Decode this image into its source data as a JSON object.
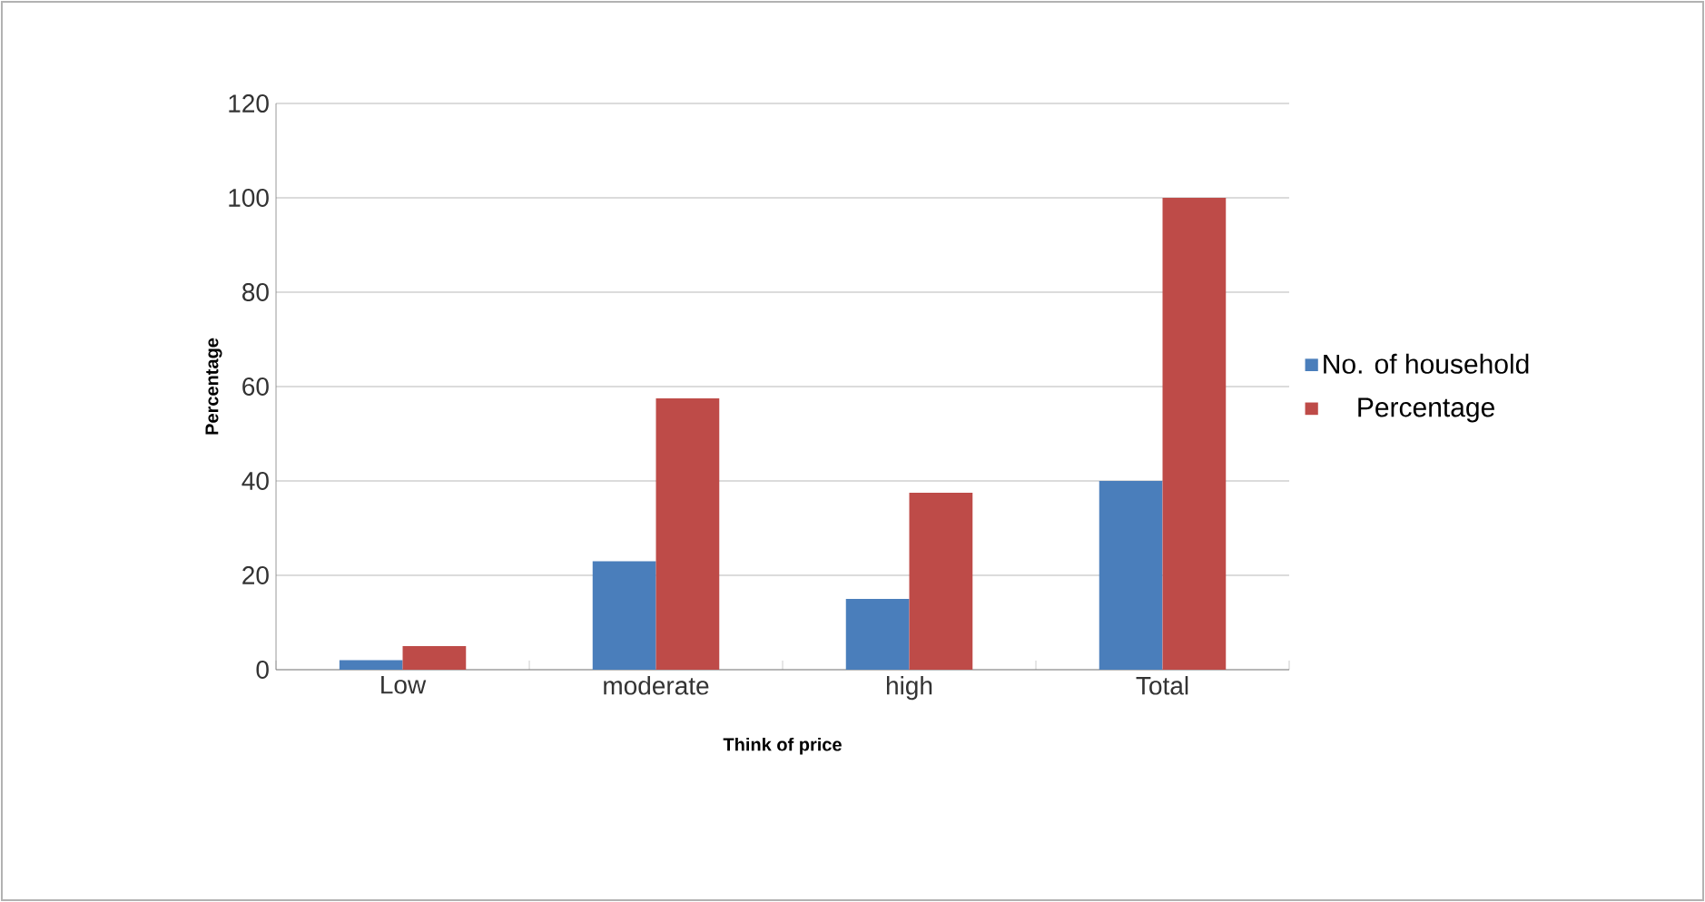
{
  "chart_data": {
    "type": "bar",
    "xlabel": "Think of price",
    "ylabel": "Percentage",
    "categories": [
      "Low",
      "moderate",
      "high",
      "Total"
    ],
    "series": [
      {
        "name": "No. of household",
        "color": "#4a7ebb",
        "values": [
          2,
          23,
          15,
          40
        ]
      },
      {
        "name": "Percentage",
        "color": "#be4b48",
        "values": [
          5,
          57.5,
          37.5,
          100
        ]
      }
    ],
    "ylim": [
      0,
      120
    ],
    "yticks": [
      0,
      20,
      40,
      60,
      80,
      100,
      120
    ],
    "grid": "y",
    "legend": "right"
  }
}
